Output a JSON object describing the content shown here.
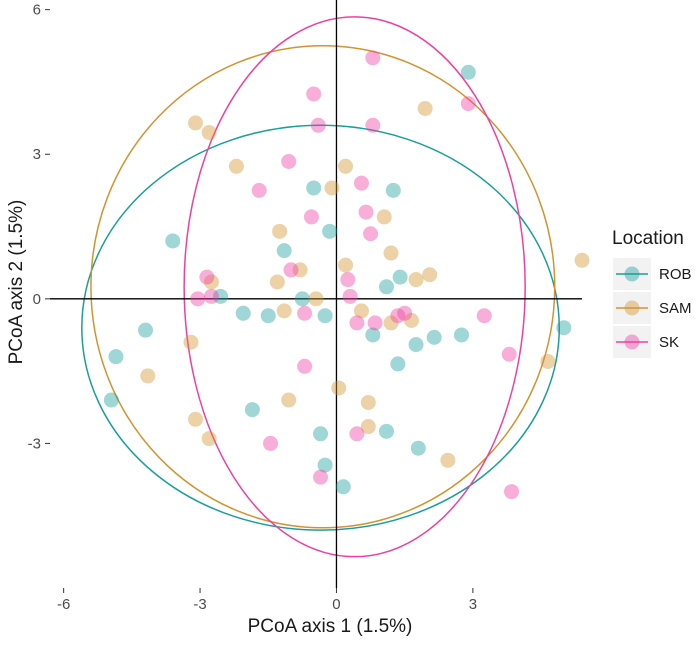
{
  "chart_data": {
    "type": "scatter",
    "title": "",
    "xlabel": "PCoA axis 1 (1.5%)",
    "ylabel": "PCoA axis 2 (1.5%)",
    "xlim": [
      -6.3,
      5.4
    ],
    "ylim": [
      -6.0,
      6.2
    ],
    "xticks": [
      -6,
      -3,
      0,
      3
    ],
    "yticks": [
      -3,
      0,
      3,
      6
    ],
    "grid": false,
    "zero_lines": true,
    "legend": {
      "title": "Location",
      "position": "right"
    },
    "series": [
      {
        "name": "ROB",
        "color": "#1b9e9e",
        "ellipse": {
          "cx": -0.35,
          "cy": -0.6,
          "rx": 5.25,
          "ry": 4.2
        },
        "points": [
          [
            2.9,
            4.7
          ],
          [
            1.25,
            2.25
          ],
          [
            -0.5,
            2.3
          ],
          [
            -3.6,
            1.2
          ],
          [
            -1.15,
            1.0
          ],
          [
            -0.15,
            1.4
          ],
          [
            1.1,
            0.25
          ],
          [
            1.4,
            0.45
          ],
          [
            -2.55,
            0.05
          ],
          [
            -0.75,
            0.0
          ],
          [
            -2.05,
            -0.3
          ],
          [
            -1.5,
            -0.35
          ],
          [
            -0.25,
            -0.35
          ],
          [
            0.8,
            -0.75
          ],
          [
            1.75,
            -0.95
          ],
          [
            2.15,
            -0.8
          ],
          [
            2.75,
            -0.75
          ],
          [
            1.35,
            -1.35
          ],
          [
            5.0,
            -0.6
          ],
          [
            -4.2,
            -0.65
          ],
          [
            -4.85,
            -1.2
          ],
          [
            -4.95,
            -2.1
          ],
          [
            -1.85,
            -2.3
          ],
          [
            -0.35,
            -2.8
          ],
          [
            1.1,
            -2.75
          ],
          [
            1.8,
            -3.1
          ],
          [
            -0.25,
            -3.45
          ],
          [
            0.15,
            -3.9
          ]
        ]
      },
      {
        "name": "SAM",
        "color": "#d4932f",
        "ellipse": {
          "cx": -0.3,
          "cy": 0.25,
          "rx": 5.1,
          "ry": 5.0
        },
        "points": [
          [
            -3.1,
            3.65
          ],
          [
            -2.8,
            3.45
          ],
          [
            1.95,
            3.95
          ],
          [
            -2.2,
            2.75
          ],
          [
            0.2,
            2.75
          ],
          [
            -0.1,
            2.3
          ],
          [
            1.05,
            1.7
          ],
          [
            -1.25,
            1.4
          ],
          [
            1.2,
            0.95
          ],
          [
            -0.8,
            0.6
          ],
          [
            0.2,
            0.7
          ],
          [
            -1.3,
            0.35
          ],
          [
            1.75,
            0.4
          ],
          [
            2.05,
            0.5
          ],
          [
            -2.75,
            0.35
          ],
          [
            5.4,
            0.8
          ],
          [
            -0.45,
            0.0
          ],
          [
            -1.15,
            -0.25
          ],
          [
            0.55,
            -0.25
          ],
          [
            1.2,
            -0.5
          ],
          [
            1.65,
            -0.45
          ],
          [
            -3.2,
            -0.9
          ],
          [
            -4.15,
            -1.6
          ],
          [
            0.05,
            -1.85
          ],
          [
            -1.05,
            -2.1
          ],
          [
            0.7,
            -2.15
          ],
          [
            -3.1,
            -2.5
          ],
          [
            -2.8,
            -2.9
          ],
          [
            0.7,
            -2.65
          ],
          [
            2.45,
            -3.35
          ],
          [
            4.65,
            -1.3
          ]
        ]
      },
      {
        "name": "SK",
        "color": "#ee3fa3",
        "ellipse": {
          "cx": 0.4,
          "cy": 0.25,
          "rx": 3.75,
          "ry": 5.6
        },
        "points": [
          [
            0.8,
            5.0
          ],
          [
            -0.5,
            4.25
          ],
          [
            2.9,
            4.05
          ],
          [
            -0.4,
            3.6
          ],
          [
            0.8,
            3.6
          ],
          [
            -1.05,
            2.85
          ],
          [
            0.55,
            2.4
          ],
          [
            -1.7,
            2.25
          ],
          [
            -0.55,
            1.7
          ],
          [
            0.65,
            1.8
          ],
          [
            0.75,
            1.35
          ],
          [
            -1.0,
            0.6
          ],
          [
            -2.85,
            0.45
          ],
          [
            0.25,
            0.4
          ],
          [
            -2.75,
            0.05
          ],
          [
            -3.05,
            0.0
          ],
          [
            0.3,
            0.05
          ],
          [
            -0.7,
            -0.3
          ],
          [
            1.35,
            -0.35
          ],
          [
            1.5,
            -0.3
          ],
          [
            0.45,
            -0.5
          ],
          [
            0.85,
            -0.5
          ],
          [
            3.25,
            -0.35
          ],
          [
            3.8,
            -1.15
          ],
          [
            -0.7,
            -1.4
          ],
          [
            0.45,
            -2.8
          ],
          [
            -1.45,
            -3.0
          ],
          [
            -0.35,
            -3.7
          ],
          [
            3.85,
            -4.0
          ]
        ]
      }
    ]
  }
}
